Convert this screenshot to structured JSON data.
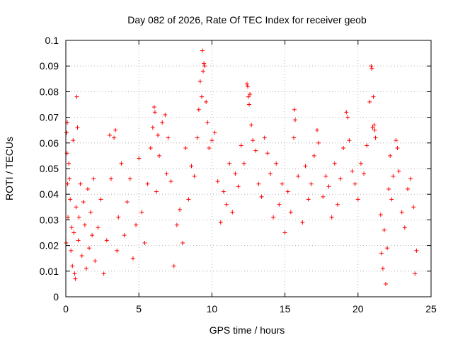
{
  "chart_data": {
    "type": "scatter",
    "title": "Day 082 of 2026, Rate Of TEC Index for receiver geob",
    "xlabel": "GPS time / hours",
    "ylabel": "ROTI / TECUs",
    "xlim": [
      0,
      25
    ],
    "ylim": [
      0,
      0.1
    ],
    "xticks": [
      0,
      5,
      10,
      15,
      20,
      25
    ],
    "xtick_labels": [
      "0",
      "5",
      "10",
      "15",
      "20",
      "25"
    ],
    "yticks": [
      0,
      0.01,
      0.02,
      0.03,
      0.04,
      0.05,
      0.06,
      0.07,
      0.08,
      0.09,
      0.1
    ],
    "ytick_labels": [
      "0",
      "0.01",
      "0.02",
      "0.03",
      "0.04",
      "0.05",
      "0.06",
      "0.07",
      "0.08",
      "0.09",
      "0.1"
    ],
    "grid": true,
    "marker": "plus",
    "color": "#ff0000",
    "data_gap_hours": [
      21.2,
      21.5
    ],
    "series": [
      {
        "points": [
          [
            0.02,
            0.021
          ],
          [
            0.05,
            0.064
          ],
          [
            0.08,
            0.056
          ],
          [
            0.1,
            0.068
          ],
          [
            0.12,
            0.044
          ],
          [
            0.15,
            0.031
          ],
          [
            0.2,
            0.052
          ],
          [
            0.25,
            0.046
          ],
          [
            0.3,
            0.038
          ],
          [
            0.35,
            0.018
          ],
          [
            0.4,
            0.027
          ],
          [
            0.45,
            0.012
          ],
          [
            0.5,
            0.061
          ],
          [
            0.55,
            0.025
          ],
          [
            0.6,
            0.009
          ],
          [
            0.65,
            0.007
          ],
          [
            0.7,
            0.035
          ],
          [
            0.75,
            0.078
          ],
          [
            0.8,
            0.066
          ],
          [
            0.85,
            0.022
          ],
          [
            0.9,
            0.031
          ],
          [
            1.0,
            0.044
          ],
          [
            1.1,
            0.016
          ],
          [
            1.2,
            0.037
          ],
          [
            1.3,
            0.028
          ],
          [
            1.4,
            0.011
          ],
          [
            1.5,
            0.042
          ],
          [
            1.6,
            0.019
          ],
          [
            1.7,
            0.033
          ],
          [
            1.8,
            0.024
          ],
          [
            1.9,
            0.046
          ],
          [
            2.0,
            0.014
          ],
          [
            2.2,
            0.027
          ],
          [
            2.4,
            0.038
          ],
          [
            2.6,
            0.009
          ],
          [
            2.8,
            0.022
          ],
          [
            3.0,
            0.063
          ],
          [
            3.1,
            0.046
          ],
          [
            3.3,
            0.062
          ],
          [
            3.4,
            0.065
          ],
          [
            3.5,
            0.018
          ],
          [
            3.6,
            0.031
          ],
          [
            3.8,
            0.052
          ],
          [
            4.0,
            0.024
          ],
          [
            4.2,
            0.037
          ],
          [
            4.4,
            0.046
          ],
          [
            4.6,
            0.015
          ],
          [
            4.8,
            0.028
          ],
          [
            5.0,
            0.054
          ],
          [
            5.2,
            0.033
          ],
          [
            5.4,
            0.021
          ],
          [
            5.6,
            0.044
          ],
          [
            5.8,
            0.058
          ],
          [
            5.95,
            0.066
          ],
          [
            6.05,
            0.074
          ],
          [
            6.1,
            0.072
          ],
          [
            6.2,
            0.041
          ],
          [
            6.3,
            0.063
          ],
          [
            6.4,
            0.055
          ],
          [
            6.6,
            0.068
          ],
          [
            6.8,
            0.071
          ],
          [
            6.9,
            0.048
          ],
          [
            7.0,
            0.062
          ],
          [
            7.2,
            0.045
          ],
          [
            7.4,
            0.012
          ],
          [
            7.6,
            0.028
          ],
          [
            7.8,
            0.034
          ],
          [
            8.0,
            0.021
          ],
          [
            8.2,
            0.058
          ],
          [
            8.4,
            0.038
          ],
          [
            8.6,
            0.051
          ],
          [
            8.8,
            0.047
          ],
          [
            9.0,
            0.062
          ],
          [
            9.1,
            0.073
          ],
          [
            9.2,
            0.084
          ],
          [
            9.3,
            0.078
          ],
          [
            9.35,
            0.096
          ],
          [
            9.4,
            0.088
          ],
          [
            9.45,
            0.091
          ],
          [
            9.5,
            0.09
          ],
          [
            9.6,
            0.076
          ],
          [
            9.7,
            0.068
          ],
          [
            9.8,
            0.058
          ],
          [
            10.0,
            0.061
          ],
          [
            10.2,
            0.064
          ],
          [
            10.4,
            0.045
          ],
          [
            10.6,
            0.029
          ],
          [
            10.8,
            0.041
          ],
          [
            11.0,
            0.036
          ],
          [
            11.2,
            0.052
          ],
          [
            11.4,
            0.033
          ],
          [
            11.6,
            0.048
          ],
          [
            11.8,
            0.043
          ],
          [
            12.0,
            0.059
          ],
          [
            12.2,
            0.052
          ],
          [
            12.4,
            0.083
          ],
          [
            12.45,
            0.082
          ],
          [
            12.5,
            0.078
          ],
          [
            12.55,
            0.075
          ],
          [
            12.6,
            0.079
          ],
          [
            12.7,
            0.067
          ],
          [
            12.8,
            0.061
          ],
          [
            13.0,
            0.057
          ],
          [
            13.2,
            0.044
          ],
          [
            13.4,
            0.039
          ],
          [
            13.6,
            0.062
          ],
          [
            13.8,
            0.056
          ],
          [
            14.0,
            0.048
          ],
          [
            14.2,
            0.031
          ],
          [
            14.4,
            0.052
          ],
          [
            14.6,
            0.036
          ],
          [
            14.8,
            0.044
          ],
          [
            15.0,
            0.025
          ],
          [
            15.2,
            0.041
          ],
          [
            15.4,
            0.033
          ],
          [
            15.6,
            0.062
          ],
          [
            15.65,
            0.073
          ],
          [
            15.7,
            0.069
          ],
          [
            15.9,
            0.047
          ],
          [
            16.2,
            0.029
          ],
          [
            16.4,
            0.051
          ],
          [
            16.6,
            0.038
          ],
          [
            16.8,
            0.044
          ],
          [
            17.0,
            0.055
          ],
          [
            17.2,
            0.065
          ],
          [
            17.3,
            0.06
          ],
          [
            17.6,
            0.039
          ],
          [
            17.8,
            0.047
          ],
          [
            18.0,
            0.043
          ],
          [
            18.2,
            0.031
          ],
          [
            18.4,
            0.052
          ],
          [
            18.6,
            0.036
          ],
          [
            18.8,
            0.046
          ],
          [
            19.0,
            0.058
          ],
          [
            19.2,
            0.072
          ],
          [
            19.3,
            0.07
          ],
          [
            19.4,
            0.061
          ],
          [
            19.6,
            0.049
          ],
          [
            19.8,
            0.044
          ],
          [
            20.0,
            0.038
          ],
          [
            20.2,
            0.052
          ],
          [
            20.4,
            0.048
          ],
          [
            20.6,
            0.059
          ],
          [
            20.8,
            0.076
          ],
          [
            20.9,
            0.09
          ],
          [
            20.95,
            0.089
          ],
          [
            21.0,
            0.066
          ],
          [
            21.05,
            0.078
          ],
          [
            21.1,
            0.067
          ],
          [
            21.15,
            0.065
          ],
          [
            21.2,
            0.062
          ],
          [
            21.55,
            0.032
          ],
          [
            21.6,
            0.017
          ],
          [
            21.7,
            0.011
          ],
          [
            21.8,
            0.026
          ],
          [
            21.9,
            0.005
          ],
          [
            22.0,
            0.019
          ],
          [
            22.1,
            0.042
          ],
          [
            22.2,
            0.055
          ],
          [
            22.3,
            0.038
          ],
          [
            22.4,
            0.047
          ],
          [
            22.6,
            0.061
          ],
          [
            22.7,
            0.058
          ],
          [
            22.8,
            0.049
          ],
          [
            23.0,
            0.033
          ],
          [
            23.2,
            0.027
          ],
          [
            23.4,
            0.042
          ],
          [
            23.6,
            0.046
          ],
          [
            23.8,
            0.035
          ],
          [
            23.9,
            0.009
          ],
          [
            24.0,
            0.018
          ]
        ]
      }
    ]
  }
}
